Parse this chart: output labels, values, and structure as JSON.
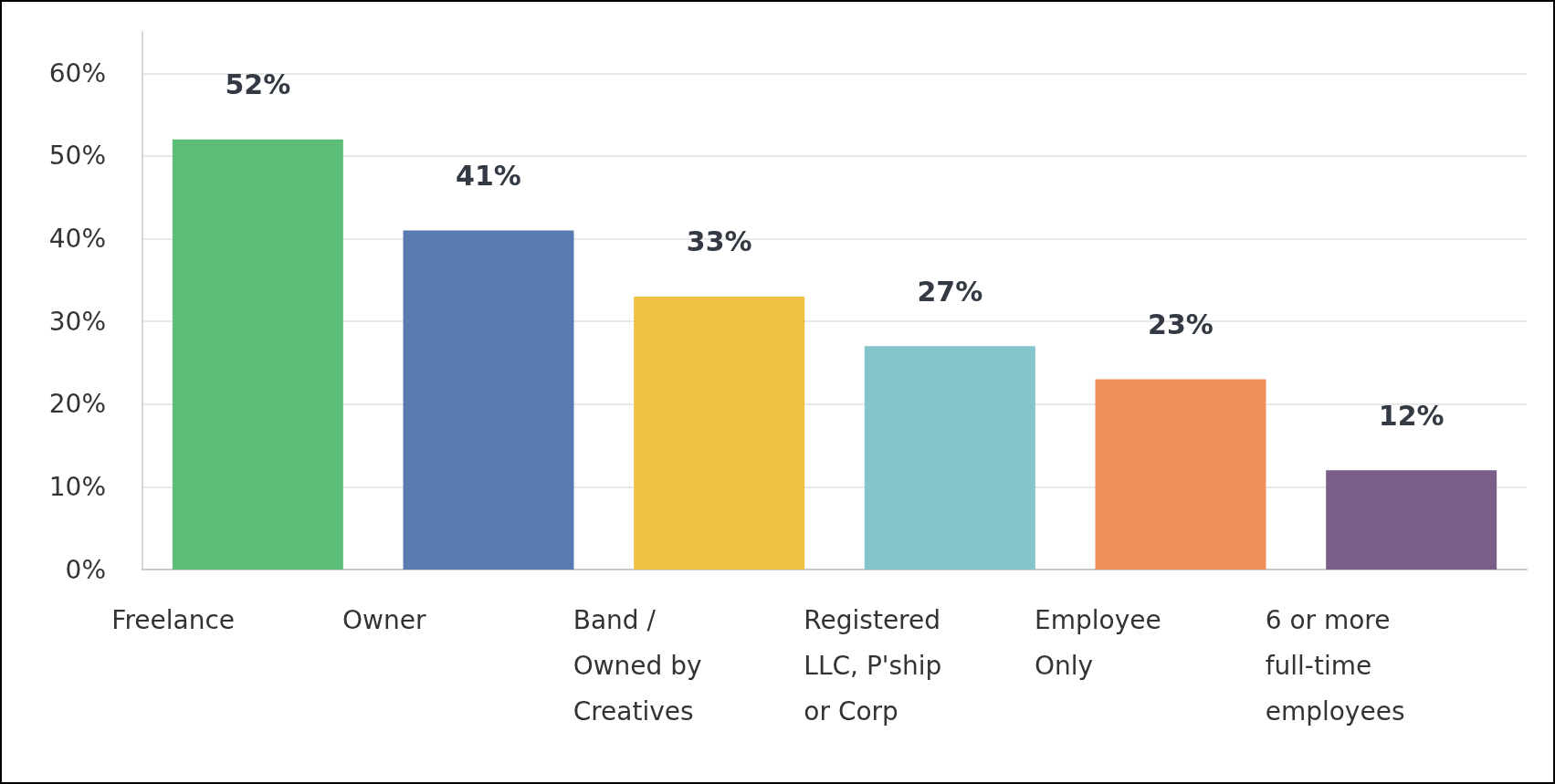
{
  "chart_data": {
    "type": "bar",
    "categories": [
      "Freelance",
      "Owner",
      "Band / Owned by Creatives",
      "Registered LLC, P'ship or Corp",
      "Employee Only",
      "6 or more full-time employees"
    ],
    "values": [
      52,
      41,
      33,
      27,
      23,
      12
    ],
    "colors": [
      "#5bbd77",
      "#5a7bb0",
      "#f0c040",
      "#84c5cc",
      "#ef915b",
      "#7a5e8a"
    ],
    "value_labels": [
      "52%",
      "41%",
      "33%",
      "27%",
      "23%",
      "12%"
    ],
    "ylim": [
      0,
      65
    ],
    "yticks": [
      {
        "value": 0,
        "label": "0%"
      },
      {
        "value": 10,
        "label": "10%"
      },
      {
        "value": 20,
        "label": "20%"
      },
      {
        "value": 30,
        "label": "30%"
      },
      {
        "value": 40,
        "label": "40%"
      },
      {
        "value": 50,
        "label": "50%"
      },
      {
        "value": 60,
        "label": "60%"
      }
    ],
    "grid": "y"
  }
}
